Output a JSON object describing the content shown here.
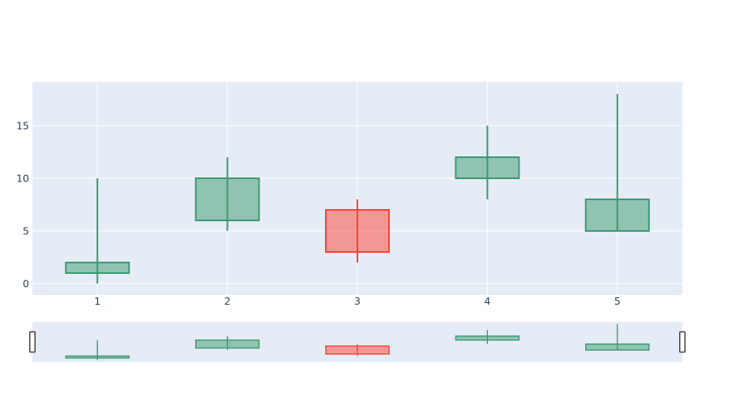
{
  "chart_data": {
    "type": "candlestick",
    "title": "",
    "xlabel": "",
    "ylabel": "",
    "x": [
      1,
      2,
      3,
      4,
      5
    ],
    "open": [
      1,
      6,
      7,
      10,
      5
    ],
    "high": [
      10,
      12,
      8,
      15,
      18
    ],
    "low": [
      0,
      5,
      2,
      8,
      5
    ],
    "close": [
      2,
      10,
      3,
      12,
      8
    ],
    "directions": [
      "increasing",
      "increasing",
      "decreasing",
      "increasing",
      "increasing"
    ],
    "x_tick_labels": [
      "1",
      "2",
      "3",
      "4",
      "5"
    ],
    "y_tick_labels": [
      "0",
      "5",
      "10",
      "15"
    ],
    "y_tick_values": [
      0,
      5,
      10,
      15
    ],
    "ylim": [
      -1.1,
      19.2
    ],
    "grid": true,
    "legend": "none",
    "rangeslider": true,
    "colors": {
      "increasing_line": "#3d9970",
      "increasing_fill": "rgba(61,153,112,0.5)",
      "decreasing_line": "#ff4136",
      "decreasing_fill": "rgba(255,65,54,0.5)",
      "plot_background": "#e5ecf6",
      "gridline": "#ffffff",
      "tick_label": "#2a3f5f",
      "page_background": "#ffffff",
      "handle_fill": "#ffffff",
      "handle_border": "#444444"
    }
  }
}
